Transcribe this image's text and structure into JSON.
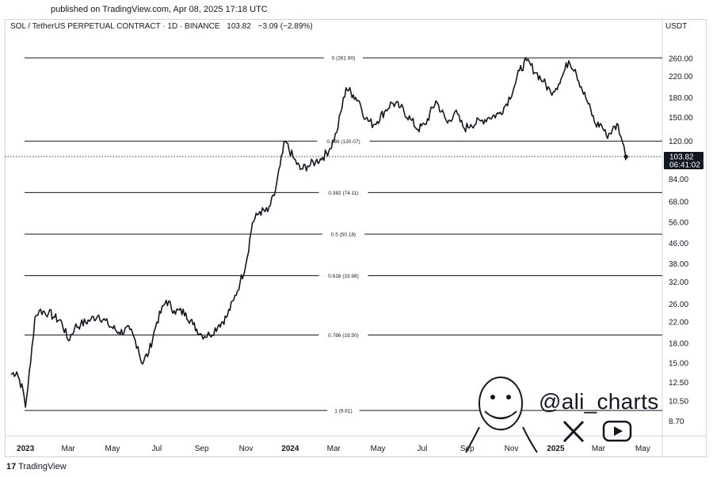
{
  "header": {
    "published": "published on TradingView.com, Apr 08, 2025 17:18 UTC",
    "symbol": "SOL / TetherUS PERPETUAL CONTRACT · 1D · BINANCE",
    "last": "103.82",
    "change": "−3.09 (−2.89%)",
    "currency": "USDT"
  },
  "footer": {
    "logo_text": "TradingView"
  },
  "brand": {
    "handle": "@ali_charts"
  },
  "colors": {
    "line": "#131722",
    "fib": "#131722",
    "price_tag": "#131722",
    "grid": "#e6e6e6"
  },
  "chart_data": {
    "type": "line",
    "y_scale": "log",
    "ylim": [
      7.8,
      330
    ],
    "y_ticks": [
      "8.70",
      "10.50",
      "12.50",
      "15.00",
      "18.00",
      "22.00",
      "26.00",
      "32.00",
      "38.00",
      "46.00",
      "56.00",
      "68.00",
      "84.00",
      "120.00",
      "150.00",
      "180.00",
      "220.00",
      "260.00"
    ],
    "x_ticks": [
      "2023",
      "Mar",
      "May",
      "Jul",
      "Sep",
      "Nov",
      "2024",
      "Mar",
      "May",
      "Jul",
      "Sep",
      "Nov",
      "2025",
      "Mar",
      "May"
    ],
    "x_ticks_bold": [
      "2023",
      "2024",
      "2025"
    ],
    "xlim": [
      "2022-12-10",
      "2025-05-28"
    ],
    "last_price": {
      "value": 103.82,
      "label": "103.82",
      "countdown": "06:41:02"
    },
    "fib_levels": [
      {
        "label": "0 (261.90)",
        "value": 261.9
      },
      {
        "label": "0.236 (120.07)",
        "value": 120.07
      },
      {
        "label": "0.382 (74.11)",
        "value": 74.11
      },
      {
        "label": "0.5 (50.18)",
        "value": 50.18
      },
      {
        "label": "0.618 (33.98)",
        "value": 33.98
      },
      {
        "label": "0.786 (19.50)",
        "value": 19.5
      },
      {
        "label": "1 (9.61)",
        "value": 9.61
      }
    ],
    "series": [
      {
        "x": [
          "2022-12-12",
          "2022-12-20",
          "2022-12-29",
          "2023-01-01",
          "2023-01-08",
          "2023-01-14",
          "2023-01-20",
          "2023-02-02",
          "2023-02-10",
          "2023-02-20",
          "2023-03-01",
          "2023-03-10",
          "2023-03-18",
          "2023-04-01",
          "2023-04-12",
          "2023-04-25",
          "2023-05-10",
          "2023-05-25",
          "2023-06-05",
          "2023-06-10",
          "2023-06-20",
          "2023-07-01",
          "2023-07-14",
          "2023-07-25",
          "2023-08-10",
          "2023-08-20",
          "2023-09-01",
          "2023-09-12",
          "2023-09-25",
          "2023-10-05",
          "2023-10-15",
          "2023-10-24",
          "2023-11-01",
          "2023-11-10",
          "2023-11-20",
          "2023-12-01",
          "2023-12-10",
          "2023-12-18",
          "2023-12-25",
          "2024-01-05",
          "2024-01-15",
          "2024-01-25",
          "2024-02-05",
          "2024-02-15",
          "2024-02-25",
          "2024-03-05",
          "2024-03-18",
          "2024-03-28",
          "2024-04-05",
          "2024-04-14",
          "2024-04-25",
          "2024-05-10",
          "2024-05-20",
          "2024-06-01",
          "2024-06-15",
          "2024-06-25",
          "2024-07-05",
          "2024-07-20",
          "2024-08-05",
          "2024-08-15",
          "2024-08-28",
          "2024-09-06",
          "2024-09-20",
          "2024-10-01",
          "2024-10-15",
          "2024-10-25",
          "2024-11-05",
          "2024-11-12",
          "2024-11-22",
          "2024-12-05",
          "2024-12-15",
          "2024-12-25",
          "2025-01-05",
          "2025-01-10",
          "2025-01-19",
          "2025-01-28",
          "2025-02-05",
          "2025-02-15",
          "2025-02-25",
          "2025-03-05",
          "2025-03-12",
          "2025-03-20",
          "2025-03-28",
          "2025-04-03",
          "2025-04-07",
          "2025-04-08"
        ],
        "y": [
          13.5,
          13.8,
          11.5,
          9.9,
          15.0,
          23.0,
          24.5,
          24.0,
          23.0,
          22.0,
          18.5,
          21.0,
          21.5,
          22.5,
          23.5,
          21.5,
          20.0,
          20.5,
          17.5,
          15.0,
          16.5,
          22.0,
          27.0,
          24.5,
          24.0,
          21.5,
          19.5,
          19.5,
          21.5,
          23.0,
          27.0,
          32.0,
          38.0,
          56.0,
          62.0,
          62.0,
          72.0,
          95.0,
          120.0,
          103.0,
          92.0,
          95.0,
          99.0,
          103.0,
          112.0,
          130.0,
          198.0,
          185.0,
          175.0,
          148.0,
          140.0,
          158.0,
          172.0,
          165.0,
          147.0,
          134.0,
          140.0,
          175.0,
          142.0,
          158.0,
          135.0,
          140.0,
          145.0,
          150.0,
          155.0,
          170.0,
          200.0,
          232.0,
          255.0,
          228.0,
          210.0,
          190.0,
          205.0,
          220.0,
          255.0,
          235.0,
          200.0,
          170.0,
          140.0,
          140.0,
          126.0,
          133.0,
          140.0,
          119.0,
          106.0,
          103.82
        ]
      }
    ]
  }
}
